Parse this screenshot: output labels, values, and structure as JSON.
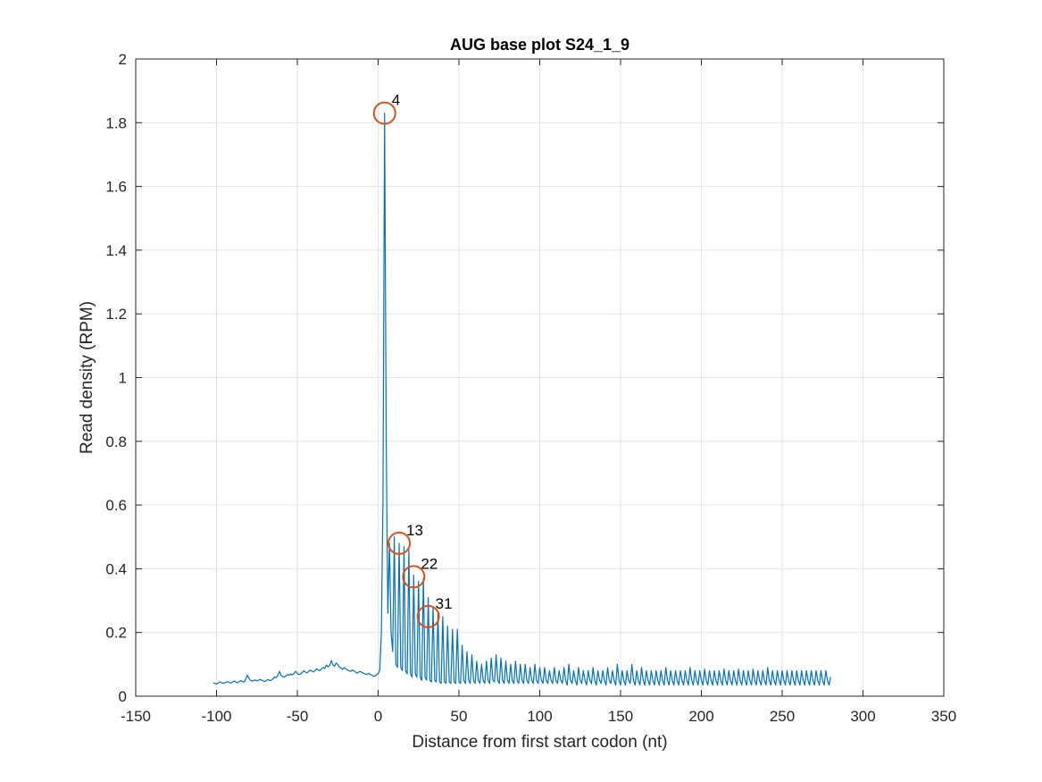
{
  "chart_data": {
    "type": "line",
    "title": "AUG base plot S24_1_9",
    "xlabel": "Distance from first start codon (nt)",
    "ylabel": "Read density (RPM)",
    "xlim": [
      -150,
      350
    ],
    "ylim": [
      0,
      2
    ],
    "xticks": [
      -150,
      -100,
      -50,
      0,
      50,
      100,
      150,
      200,
      250,
      300,
      350
    ],
    "yticks": [
      0,
      0.2,
      0.4,
      0.6,
      0.8,
      1,
      1.2,
      1.4,
      1.6,
      1.8,
      2
    ],
    "ytick_labels": [
      "0",
      "0.2",
      "0.4",
      "0.6",
      "0.8",
      "1",
      "1.2",
      "1.4",
      "1.6",
      "1.8",
      "2"
    ],
    "grid": true,
    "line_color": "#0072BD",
    "marker_color": "#D95319",
    "series": [
      {
        "x_start": -102,
        "x_step": 1,
        "values": [
          0.042,
          0.04,
          0.038,
          0.041,
          0.045,
          0.043,
          0.04,
          0.042,
          0.044,
          0.046,
          0.043,
          0.041,
          0.045,
          0.048,
          0.044,
          0.042,
          0.046,
          0.049,
          0.046,
          0.044,
          0.052,
          0.066,
          0.056,
          0.05,
          0.047,
          0.049,
          0.051,
          0.048,
          0.05,
          0.053,
          0.05,
          0.048,
          0.046,
          0.05,
          0.052,
          0.049,
          0.051,
          0.055,
          0.06,
          0.058,
          0.066,
          0.078,
          0.065,
          0.062,
          0.06,
          0.064,
          0.068,
          0.066,
          0.07,
          0.067,
          0.072,
          0.078,
          0.071,
          0.068,
          0.07,
          0.074,
          0.08,
          0.076,
          0.073,
          0.078,
          0.082,
          0.079,
          0.076,
          0.081,
          0.086,
          0.082,
          0.08,
          0.086,
          0.09,
          0.087,
          0.098,
          0.092,
          0.096,
          0.112,
          0.099,
          0.094,
          0.104,
          0.1,
          0.092,
          0.088,
          0.084,
          0.09,
          0.086,
          0.082,
          0.08,
          0.078,
          0.082,
          0.08,
          0.076,
          0.072,
          0.076,
          0.078,
          0.074,
          0.072,
          0.07,
          0.068,
          0.072,
          0.069,
          0.066,
          0.064,
          0.062,
          0.068,
          0.07,
          0.082,
          0.2,
          0.62,
          1.83,
          0.8,
          0.26,
          0.48,
          0.2,
          0.14,
          0.5,
          0.1,
          0.09,
          0.48,
          0.09,
          0.08,
          0.47,
          0.08,
          0.07,
          0.46,
          0.07,
          0.06,
          0.38,
          0.07,
          0.06,
          0.36,
          0.06,
          0.05,
          0.37,
          0.06,
          0.05,
          0.31,
          0.05,
          0.045,
          0.28,
          0.05,
          0.045,
          0.26,
          0.045,
          0.04,
          0.25,
          0.045,
          0.04,
          0.22,
          0.045,
          0.04,
          0.21,
          0.045,
          0.04,
          0.21,
          0.045,
          0.04,
          0.16,
          0.05,
          0.04,
          0.14,
          0.05,
          0.04,
          0.13,
          0.05,
          0.04,
          0.11,
          0.05,
          0.04,
          0.1,
          0.05,
          0.04,
          0.11,
          0.05,
          0.04,
          0.12,
          0.05,
          0.045,
          0.13,
          0.05,
          0.04,
          0.12,
          0.05,
          0.04,
          0.11,
          0.05,
          0.04,
          0.1,
          0.05,
          0.04,
          0.11,
          0.05,
          0.04,
          0.1,
          0.05,
          0.04,
          0.1,
          0.05,
          0.04,
          0.09,
          0.05,
          0.04,
          0.1,
          0.05,
          0.04,
          0.09,
          0.05,
          0.04,
          0.09,
          0.05,
          0.04,
          0.08,
          0.05,
          0.04,
          0.09,
          0.05,
          0.04,
          0.08,
          0.05,
          0.04,
          0.09,
          0.05,
          0.035,
          0.1,
          0.05,
          0.04,
          0.08,
          0.05,
          0.035,
          0.09,
          0.05,
          0.04,
          0.08,
          0.05,
          0.035,
          0.08,
          0.05,
          0.04,
          0.09,
          0.05,
          0.035,
          0.08,
          0.05,
          0.04,
          0.08,
          0.05,
          0.035,
          0.09,
          0.05,
          0.04,
          0.08,
          0.05,
          0.035,
          0.1,
          0.05,
          0.035,
          0.08,
          0.05,
          0.035,
          0.08,
          0.05,
          0.04,
          0.1,
          0.05,
          0.035,
          0.08,
          0.05,
          0.035,
          0.09,
          0.05,
          0.035,
          0.08,
          0.05,
          0.035,
          0.08,
          0.05,
          0.035,
          0.08,
          0.05,
          0.035,
          0.08,
          0.05,
          0.035,
          0.09,
          0.05,
          0.035,
          0.08,
          0.05,
          0.035,
          0.08,
          0.05,
          0.035,
          0.08,
          0.05,
          0.035,
          0.08,
          0.05,
          0.035,
          0.09,
          0.05,
          0.035,
          0.08,
          0.05,
          0.035,
          0.08,
          0.05,
          0.035,
          0.085,
          0.05,
          0.035,
          0.08,
          0.05,
          0.035,
          0.08,
          0.05,
          0.035,
          0.08,
          0.05,
          0.035,
          0.085,
          0.05,
          0.035,
          0.08,
          0.05,
          0.035,
          0.08,
          0.05,
          0.035,
          0.085,
          0.05,
          0.035,
          0.08,
          0.05,
          0.035,
          0.08,
          0.05,
          0.035,
          0.085,
          0.05,
          0.035,
          0.08,
          0.05,
          0.035,
          0.08,
          0.05,
          0.035,
          0.09,
          0.05,
          0.035,
          0.08,
          0.05,
          0.035,
          0.08,
          0.05,
          0.035,
          0.08,
          0.05,
          0.035,
          0.08,
          0.05,
          0.035,
          0.08,
          0.05,
          0.035,
          0.08,
          0.05,
          0.035,
          0.08,
          0.05,
          0.035,
          0.08,
          0.05,
          0.035,
          0.08,
          0.05,
          0.035,
          0.08,
          0.05,
          0.035,
          0.08,
          0.05,
          0.035,
          0.08,
          0.05,
          0.035,
          0.06
        ]
      }
    ],
    "annotations": [
      {
        "x": 4,
        "y": 1.83,
        "label": "4"
      },
      {
        "x": 13,
        "y": 0.48,
        "label": "13"
      },
      {
        "x": 22,
        "y": 0.375,
        "label": "22"
      },
      {
        "x": 31,
        "y": 0.25,
        "label": "31"
      }
    ]
  }
}
